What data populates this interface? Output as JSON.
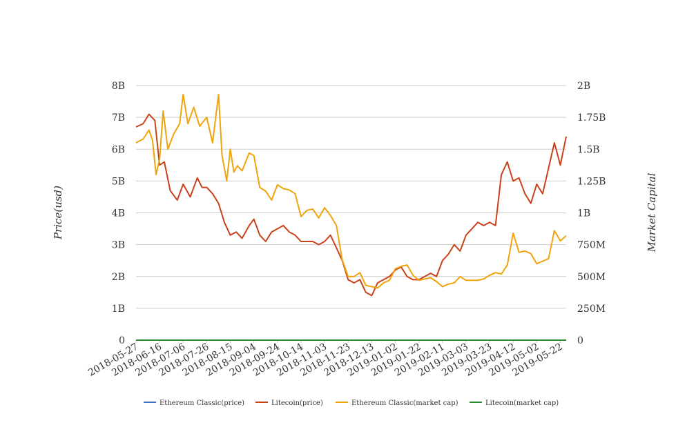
{
  "chart_data": {
    "type": "line",
    "title": "",
    "ylabel": "Price(usd)",
    "y2label": "Market Capital",
    "ylim": [
      0,
      8000000000
    ],
    "y2lim": [
      0,
      2000000000
    ],
    "y_ticks": [
      "0",
      "1B",
      "2B",
      "3B",
      "4B",
      "5B",
      "6B",
      "7B",
      "8B"
    ],
    "y2_ticks": [
      "0",
      "250M",
      "500M",
      "750M",
      "1B",
      "1.25B",
      "1.5B",
      "1.75B",
      "2B"
    ],
    "x_ticks": [
      "2018-05-27",
      "2018-06-16",
      "2018-07-06",
      "2018-07-26",
      "2018-08-15",
      "2018-09-04",
      "2018-09-24",
      "2018-10-14",
      "2018-11-03",
      "2018-11-23",
      "2018-12-13",
      "2019-01-02",
      "2019-01-22",
      "2019-02-11",
      "2019-03-03",
      "2019-03-23",
      "2019-04-12",
      "2019-05-02",
      "2019-05-22"
    ],
    "grid": true,
    "legend_position": "bottom",
    "series": [
      {
        "name": "Ethereum Classic(price)",
        "color": "#4472c4",
        "axis": "left",
        "x": [
          "2018-05-27",
          "2019-05-27"
        ],
        "y": [
          0,
          0
        ]
      },
      {
        "name": "Litecoin(price)",
        "color": "#c9411a",
        "axis": "left",
        "x": [
          "2018-05-27",
          "2018-06-02",
          "2018-06-07",
          "2018-06-12",
          "2018-06-16",
          "2018-06-20",
          "2018-06-25",
          "2018-07-01",
          "2018-07-06",
          "2018-07-12",
          "2018-07-18",
          "2018-07-22",
          "2018-07-26",
          "2018-07-31",
          "2018-08-05",
          "2018-08-10",
          "2018-08-15",
          "2018-08-20",
          "2018-08-25",
          "2018-08-31",
          "2018-09-04",
          "2018-09-09",
          "2018-09-14",
          "2018-09-19",
          "2018-09-24",
          "2018-09-29",
          "2018-10-04",
          "2018-10-09",
          "2018-10-14",
          "2018-10-19",
          "2018-10-24",
          "2018-10-29",
          "2018-11-03",
          "2018-11-08",
          "2018-11-13",
          "2018-11-18",
          "2018-11-23",
          "2018-11-28",
          "2018-12-03",
          "2018-12-08",
          "2018-12-13",
          "2018-12-18",
          "2018-12-23",
          "2018-12-28",
          "2019-01-02",
          "2019-01-07",
          "2019-01-12",
          "2019-01-17",
          "2019-01-22",
          "2019-01-27",
          "2019-02-01",
          "2019-02-06",
          "2019-02-11",
          "2019-02-16",
          "2019-02-21",
          "2019-02-26",
          "2019-03-03",
          "2019-03-08",
          "2019-03-13",
          "2019-03-18",
          "2019-03-23",
          "2019-03-28",
          "2019-04-02",
          "2019-04-07",
          "2019-04-12",
          "2019-04-17",
          "2019-04-22",
          "2019-04-27",
          "2019-05-02",
          "2019-05-07",
          "2019-05-12",
          "2019-05-17",
          "2019-05-22",
          "2019-05-27"
        ],
        "y": [
          6700000000.0,
          6800000000.0,
          7100000000.0,
          6900000000.0,
          5500000000.0,
          5600000000.0,
          4700000000.0,
          4400000000.0,
          4900000000.0,
          4500000000.0,
          5100000000.0,
          4800000000.0,
          4800000000.0,
          4600000000.0,
          4300000000.0,
          3700000000.0,
          3300000000.0,
          3400000000.0,
          3200000000.0,
          3600000000.0,
          3800000000.0,
          3300000000.0,
          3100000000.0,
          3400000000.0,
          3500000000.0,
          3600000000.0,
          3400000000.0,
          3300000000.0,
          3100000000.0,
          3100000000.0,
          3100000000.0,
          3000000000.0,
          3100000000.0,
          3300000000.0,
          2900000000.0,
          2500000000.0,
          1900000000.0,
          1800000000.0,
          1900000000.0,
          1500000000.0,
          1400000000.0,
          1800000000.0,
          1900000000.0,
          2000000000.0,
          2200000000.0,
          2300000000.0,
          2000000000.0,
          1900000000.0,
          1900000000.0,
          2000000000.0,
          2100000000.0,
          2000000000.0,
          2500000000.0,
          2700000000.0,
          3000000000.0,
          2800000000.0,
          3300000000.0,
          3500000000.0,
          3700000000.0,
          3600000000.0,
          3700000000.0,
          3600000000.0,
          5200000000.0,
          5600000000.0,
          5000000000.0,
          5100000000.0,
          4600000000.0,
          4300000000.0,
          4900000000.0,
          4600000000.0,
          5400000000.0,
          6200000000.0,
          5500000000.0,
          6400000000.0
        ]
      },
      {
        "name": "Ethereum Classic(market cap)",
        "color": "#f0a30a",
        "axis": "right",
        "x": [
          "2018-05-27",
          "2018-06-02",
          "2018-06-07",
          "2018-06-10",
          "2018-06-13",
          "2018-06-16",
          "2018-06-19",
          "2018-06-23",
          "2018-06-28",
          "2018-07-03",
          "2018-07-06",
          "2018-07-10",
          "2018-07-15",
          "2018-07-20",
          "2018-07-26",
          "2018-07-31",
          "2018-08-05",
          "2018-08-08",
          "2018-08-12",
          "2018-08-15",
          "2018-08-18",
          "2018-08-21",
          "2018-08-25",
          "2018-08-31",
          "2018-09-04",
          "2018-09-09",
          "2018-09-14",
          "2018-09-19",
          "2018-09-24",
          "2018-09-29",
          "2018-10-04",
          "2018-10-09",
          "2018-10-14",
          "2018-10-19",
          "2018-10-24",
          "2018-10-29",
          "2018-11-03",
          "2018-11-08",
          "2018-11-13",
          "2018-11-18",
          "2018-11-23",
          "2018-11-28",
          "2018-12-03",
          "2018-12-08",
          "2018-12-13",
          "2018-12-18",
          "2018-12-23",
          "2018-12-28",
          "2019-01-02",
          "2019-01-07",
          "2019-01-12",
          "2019-01-17",
          "2019-01-22",
          "2019-01-27",
          "2019-02-01",
          "2019-02-06",
          "2019-02-11",
          "2019-02-16",
          "2019-02-21",
          "2019-02-26",
          "2019-03-03",
          "2019-03-08",
          "2019-03-13",
          "2019-03-18",
          "2019-03-23",
          "2019-03-28",
          "2019-04-02",
          "2019-04-07",
          "2019-04-12",
          "2019-04-17",
          "2019-04-22",
          "2019-04-27",
          "2019-05-02",
          "2019-05-07",
          "2019-05-12",
          "2019-05-17",
          "2019-05-22",
          "2019-05-27"
        ],
        "y": [
          1550000000.0,
          1580000000.0,
          1650000000.0,
          1570000000.0,
          1300000000.0,
          1420000000.0,
          1800000000.0,
          1500000000.0,
          1620000000.0,
          1700000000.0,
          1930000000.0,
          1700000000.0,
          1830000000.0,
          1680000000.0,
          1750000000.0,
          1550000000.0,
          1930000000.0,
          1450000000.0,
          1250000000.0,
          1500000000.0,
          1320000000.0,
          1370000000.0,
          1330000000.0,
          1470000000.0,
          1450000000.0,
          1200000000.0,
          1170000000.0,
          1100000000.0,
          1220000000.0,
          1190000000.0,
          1180000000.0,
          1150000000.0,
          970000000.0,
          1020000000.0,
          1030000000.0,
          960000000.0,
          1040000000.0,
          980000000.0,
          900000000.0,
          630000000.0,
          500000000.0,
          500000000.0,
          530000000.0,
          430000000.0,
          420000000.0,
          410000000.0,
          450000000.0,
          470000000.0,
          560000000.0,
          580000000.0,
          590000000.0,
          510000000.0,
          470000000.0,
          480000000.0,
          490000000.0,
          460000000.0,
          420000000.0,
          440000000.0,
          450000000.0,
          500000000.0,
          470000000.0,
          470000000.0,
          470000000.0,
          480000000.0,
          510000000.0,
          530000000.0,
          520000000.0,
          590000000.0,
          840000000.0,
          690000000.0,
          700000000.0,
          680000000.0,
          600000000.0,
          620000000.0,
          640000000.0,
          860000000.0,
          780000000.0,
          820000000.0
        ]
      },
      {
        "name": "Litecoin(market cap)",
        "color": "#2e8b2e",
        "axis": "right",
        "x": [
          "2018-05-27",
          "2019-05-27"
        ],
        "y": [
          0,
          0
        ]
      }
    ]
  }
}
